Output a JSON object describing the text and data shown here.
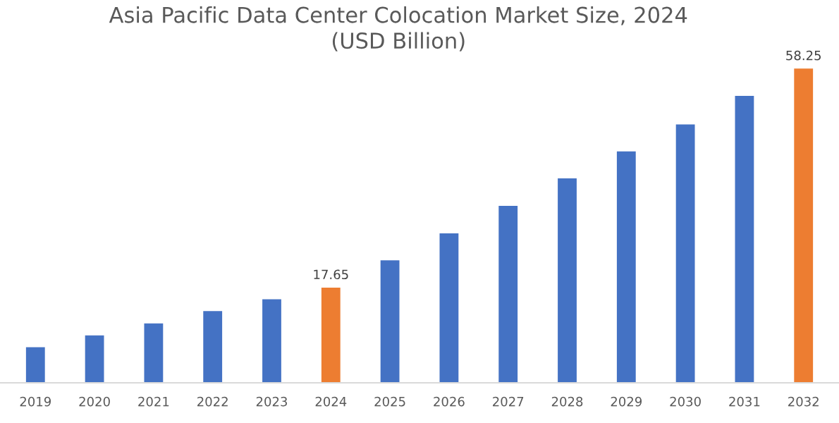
{
  "chart_data": {
    "type": "bar",
    "title": "Asia Pacific Data Center Colocation Market Size, 2024\n(USD Billion)",
    "categories": [
      "2019",
      "2020",
      "2021",
      "2022",
      "2023",
      "2024",
      "2025",
      "2026",
      "2027",
      "2028",
      "2029",
      "2030",
      "2031",
      "2032"
    ],
    "values": [
      6.6,
      8.8,
      11.0,
      13.3,
      15.5,
      17.65,
      22.7,
      27.7,
      32.8,
      37.9,
      42.9,
      47.9,
      53.2,
      58.25
    ],
    "colors": [
      "#4472c4",
      "#4472c4",
      "#4472c4",
      "#4472c4",
      "#4472c4",
      "#ed7d31",
      "#4472c4",
      "#4472c4",
      "#4472c4",
      "#4472c4",
      "#4472c4",
      "#4472c4",
      "#4472c4",
      "#ed7d31"
    ],
    "value_labels": [
      null,
      null,
      null,
      null,
      null,
      "17.65",
      null,
      null,
      null,
      null,
      null,
      null,
      null,
      "58.25"
    ],
    "tick_labels": "x",
    "grid": false,
    "legend": false
  }
}
